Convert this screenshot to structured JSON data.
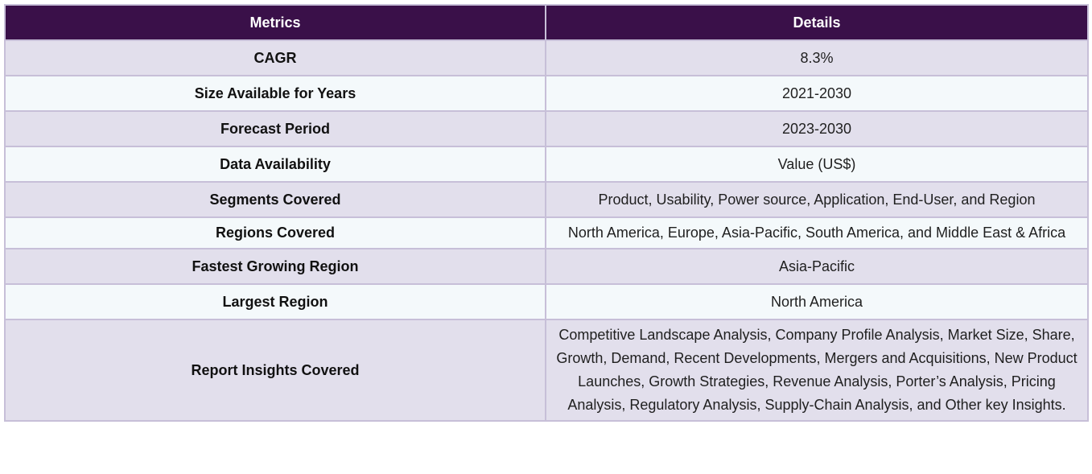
{
  "table": {
    "headers": [
      "Metrics",
      "Details"
    ],
    "rows": [
      {
        "metric": "CAGR",
        "details": "8.3%"
      },
      {
        "metric": "Size Available for Years",
        "details": "2021-2030"
      },
      {
        "metric": "Forecast Period",
        "details": "2023-2030"
      },
      {
        "metric": "Data Availability",
        "details": "Value (US$)"
      },
      {
        "metric": "Segments Covered",
        "details": "Product, Usability, Power source, Application, End-User, and Region"
      },
      {
        "metric": "Regions Covered",
        "details": "North America, Europe, Asia-Pacific, South America, and Middle East & Africa"
      },
      {
        "metric": "Fastest Growing Region",
        "details": "Asia-Pacific"
      },
      {
        "metric": "Largest Region",
        "details": "North America"
      },
      {
        "metric": "Report Insights Covered",
        "details": "Competitive Landscape Analysis, Company Profile Analysis, Market Size, Share, Growth, Demand, Recent Developments, Mergers and Acquisitions, New Product Launches, Growth Strategies, Revenue Analysis, Porter’s Analysis, Pricing Analysis, Regulatory Analysis, Supply-Chain Analysis, and Other key Insights."
      }
    ]
  },
  "colors": {
    "header_bg": "#3a1049",
    "row_odd_bg": "#e2dfec",
    "row_even_bg": "#f4f9fb",
    "border": "#c7bfd8"
  }
}
